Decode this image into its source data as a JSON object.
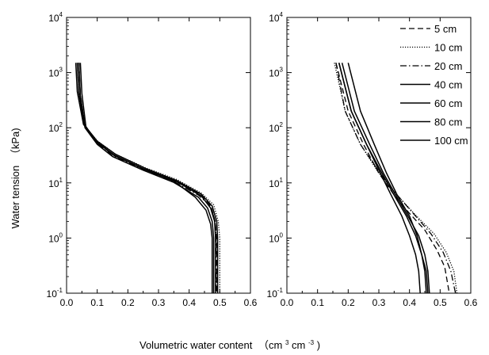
{
  "figure": {
    "ylabel": {
      "main": "Water tension",
      "unit": "（kPa)"
    },
    "xlabel": {
      "main": "Volumetric water content",
      "unit_open": "（cm",
      "exp1": "3",
      "unit_mid": "cm",
      "exp2": "-3",
      "unit_close": ")"
    }
  },
  "chart_data": [
    {
      "type": "line",
      "panel": "left",
      "xlim": [
        0.0,
        0.6
      ],
      "ylim": [
        0.1,
        10000
      ],
      "yscale": "log",
      "x_ticks": [
        "0.0",
        "0.1",
        "0.2",
        "0.3",
        "0.4",
        "0.5",
        "0.6"
      ],
      "y_ticks": [
        {
          "base": "10",
          "exp": "-1"
        },
        {
          "base": "10",
          "exp": "0"
        },
        {
          "base": "10",
          "exp": "1"
        },
        {
          "base": "10",
          "exp": "2"
        },
        {
          "base": "10",
          "exp": "3"
        },
        {
          "base": "10",
          "exp": "4"
        }
      ],
      "legend": "none",
      "series": [
        {
          "name": "5 cm",
          "style": "dash",
          "points": [
            [
              0.04,
              1500
            ],
            [
              0.045,
              400
            ],
            [
              0.06,
              110
            ],
            [
              0.1,
              55
            ],
            [
              0.15,
              32
            ],
            [
              0.25,
              18
            ],
            [
              0.35,
              11
            ],
            [
              0.43,
              6.5
            ],
            [
              0.47,
              4
            ],
            [
              0.485,
              2
            ],
            [
              0.49,
              1
            ],
            [
              0.49,
              0.3
            ],
            [
              0.49,
              0.1
            ]
          ]
        },
        {
          "name": "10 cm",
          "style": "dot",
          "points": [
            [
              0.035,
              1500
            ],
            [
              0.04,
              420
            ],
            [
              0.058,
              110
            ],
            [
              0.1,
              58
            ],
            [
              0.16,
              33
            ],
            [
              0.26,
              18.5
            ],
            [
              0.36,
              11.5
            ],
            [
              0.44,
              6.5
            ],
            [
              0.48,
              4
            ],
            [
              0.495,
              2
            ],
            [
              0.5,
              1
            ],
            [
              0.5,
              0.3
            ],
            [
              0.5,
              0.1
            ]
          ]
        },
        {
          "name": "20 cm",
          "style": "dashdot",
          "points": [
            [
              0.04,
              1500
            ],
            [
              0.045,
              400
            ],
            [
              0.06,
              105
            ],
            [
              0.1,
              52
            ],
            [
              0.15,
              31
            ],
            [
              0.25,
              17.5
            ],
            [
              0.35,
              10.5
            ],
            [
              0.43,
              6
            ],
            [
              0.47,
              3.8
            ],
            [
              0.485,
              2
            ],
            [
              0.488,
              1
            ],
            [
              0.488,
              0.3
            ],
            [
              0.488,
              0.1
            ]
          ]
        },
        {
          "name": "40 cm",
          "style": "solid",
          "points": [
            [
              0.035,
              1500
            ],
            [
              0.04,
              430
            ],
            [
              0.058,
              112
            ],
            [
              0.1,
              57
            ],
            [
              0.16,
              33
            ],
            [
              0.26,
              18
            ],
            [
              0.36,
              11
            ],
            [
              0.44,
              6.2
            ],
            [
              0.475,
              3.8
            ],
            [
              0.49,
              2
            ],
            [
              0.493,
              1
            ],
            [
              0.493,
              0.3
            ],
            [
              0.493,
              0.1
            ]
          ]
        },
        {
          "name": "60 cm",
          "style": "solid",
          "points": [
            [
              0.03,
              1500
            ],
            [
              0.035,
              450
            ],
            [
              0.055,
              115
            ],
            [
              0.1,
              56
            ],
            [
              0.15,
              33
            ],
            [
              0.25,
              18
            ],
            [
              0.35,
              10.8
            ],
            [
              0.42,
              5.5
            ],
            [
              0.455,
              3.2
            ],
            [
              0.47,
              1.8
            ],
            [
              0.475,
              1
            ],
            [
              0.475,
              0.3
            ],
            [
              0.475,
              0.1
            ]
          ]
        },
        {
          "name": "80 cm",
          "style": "solid",
          "points": [
            [
              0.04,
              1500
            ],
            [
              0.045,
              380
            ],
            [
              0.06,
              100
            ],
            [
              0.1,
              50
            ],
            [
              0.15,
              30
            ],
            [
              0.25,
              17
            ],
            [
              0.35,
              10.2
            ],
            [
              0.43,
              5.5
            ],
            [
              0.46,
              3.5
            ],
            [
              0.475,
              2
            ],
            [
              0.48,
              1
            ],
            [
              0.48,
              0.3
            ],
            [
              0.48,
              0.1
            ]
          ]
        },
        {
          "name": "100 cm",
          "style": "solid",
          "points": [
            [
              0.045,
              1500
            ],
            [
              0.05,
              420
            ],
            [
              0.063,
              105
            ],
            [
              0.1,
              53
            ],
            [
              0.16,
              31
            ],
            [
              0.26,
              17
            ],
            [
              0.36,
              10.5
            ],
            [
              0.44,
              5.8
            ],
            [
              0.47,
              3.5
            ],
            [
              0.483,
              2
            ],
            [
              0.486,
              1
            ],
            [
              0.486,
              0.3
            ],
            [
              0.486,
              0.1
            ]
          ]
        }
      ]
    },
    {
      "type": "line",
      "panel": "right",
      "xlim": [
        0.0,
        0.6
      ],
      "ylim": [
        0.1,
        10000
      ],
      "yscale": "log",
      "x_ticks": [
        "0.0",
        "0.1",
        "0.2",
        "0.3",
        "0.4",
        "0.5",
        "0.6"
      ],
      "y_ticks": [
        {
          "base": "10",
          "exp": "-1"
        },
        {
          "base": "10",
          "exp": "0"
        },
        {
          "base": "10",
          "exp": "1"
        },
        {
          "base": "10",
          "exp": "2"
        },
        {
          "base": "10",
          "exp": "3"
        },
        {
          "base": "10",
          "exp": "4"
        }
      ],
      "legend": "top-right",
      "series": [
        {
          "name": "5 cm",
          "style": "dash",
          "points": [
            [
              0.16,
              1500
            ],
            [
              0.2,
              200
            ],
            [
              0.25,
              50
            ],
            [
              0.3,
              15
            ],
            [
              0.35,
              6
            ],
            [
              0.4,
              2.8
            ],
            [
              0.45,
              1.4
            ],
            [
              0.49,
              0.6
            ],
            [
              0.515,
              0.3
            ],
            [
              0.53,
              0.1
            ]
          ]
        },
        {
          "name": "10 cm",
          "style": "dot",
          "points": [
            [
              0.155,
              1500
            ],
            [
              0.19,
              200
            ],
            [
              0.24,
              50
            ],
            [
              0.3,
              15
            ],
            [
              0.36,
              6
            ],
            [
              0.42,
              2.6
            ],
            [
              0.48,
              1.2
            ],
            [
              0.52,
              0.55
            ],
            [
              0.545,
              0.25
            ],
            [
              0.555,
              0.1
            ]
          ]
        },
        {
          "name": "20 cm",
          "style": "dashdot",
          "points": [
            [
              0.16,
              1500
            ],
            [
              0.19,
              200
            ],
            [
              0.24,
              50
            ],
            [
              0.3,
              16
            ],
            [
              0.36,
              6
            ],
            [
              0.42,
              2.5
            ],
            [
              0.47,
              1.2
            ],
            [
              0.51,
              0.55
            ],
            [
              0.535,
              0.25
            ],
            [
              0.55,
              0.1
            ]
          ]
        },
        {
          "name": "40 cm",
          "style": "solid",
          "points": [
            [
              0.17,
              1500
            ],
            [
              0.21,
              200
            ],
            [
              0.26,
              50
            ],
            [
              0.31,
              15
            ],
            [
              0.35,
              6
            ],
            [
              0.39,
              2.5
            ],
            [
              0.42,
              1.1
            ],
            [
              0.44,
              0.5
            ],
            [
              0.455,
              0.25
            ],
            [
              0.46,
              0.1
            ]
          ]
        },
        {
          "name": "60 cm",
          "style": "solid",
          "points": [
            [
              0.18,
              1500
            ],
            [
              0.22,
              200
            ],
            [
              0.27,
              50
            ],
            [
              0.315,
              15
            ],
            [
              0.355,
              6
            ],
            [
              0.395,
              2.5
            ],
            [
              0.43,
              1.1
            ],
            [
              0.45,
              0.5
            ],
            [
              0.46,
              0.25
            ],
            [
              0.465,
              0.1
            ]
          ]
        },
        {
          "name": "80 cm",
          "style": "solid",
          "points": [
            [
              0.17,
              1500
            ],
            [
              0.21,
              200
            ],
            [
              0.26,
              50
            ],
            [
              0.305,
              15
            ],
            [
              0.34,
              6
            ],
            [
              0.375,
              2.5
            ],
            [
              0.4,
              1.1
            ],
            [
              0.42,
              0.5
            ],
            [
              0.43,
              0.25
            ],
            [
              0.435,
              0.1
            ]
          ]
        },
        {
          "name": "100 cm",
          "style": "solid",
          "points": [
            [
              0.2,
              1500
            ],
            [
              0.24,
              200
            ],
            [
              0.285,
              50
            ],
            [
              0.325,
              15
            ],
            [
              0.36,
              6
            ],
            [
              0.4,
              2.5
            ],
            [
              0.425,
              1.1
            ],
            [
              0.44,
              0.5
            ],
            [
              0.45,
              0.25
            ],
            [
              0.455,
              0.1
            ]
          ]
        }
      ]
    }
  ]
}
